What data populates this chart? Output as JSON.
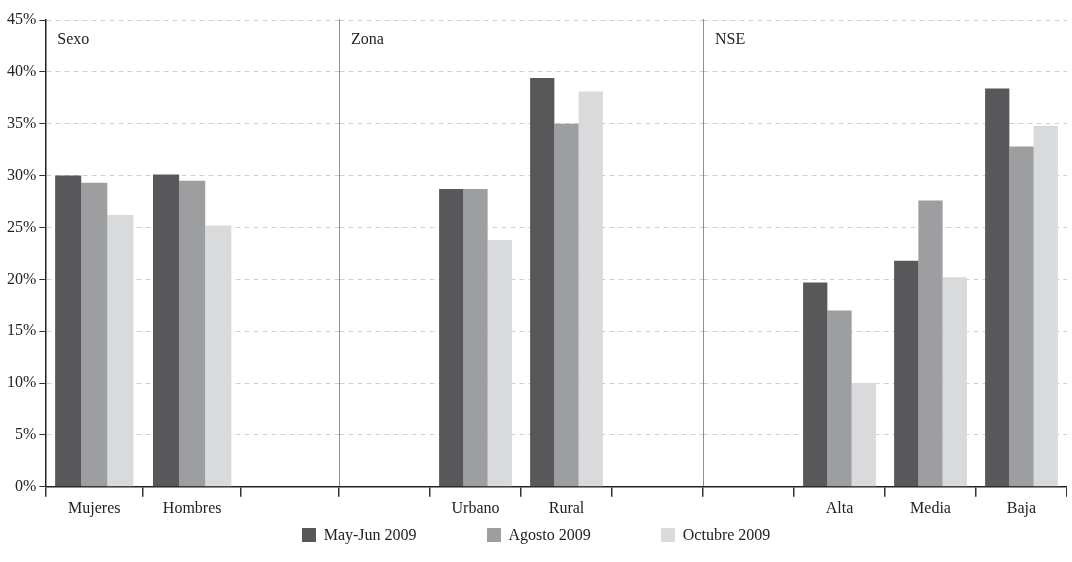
{
  "chart_data": [
    {
      "type": "bar",
      "categories": [
        "Mujeres",
        "Hombres",
        null
      ],
      "series": [
        {
          "name": "May-Jun 2009",
          "color": "#58585a",
          "values": [
            30.0,
            30.1,
            null
          ]
        },
        {
          "name": "Agosto 2009",
          "color": "#9d9ea0",
          "values": [
            29.3,
            29.5,
            null
          ]
        },
        {
          "name": "Octubre 2009",
          "color": "#d9dadc",
          "values": [
            26.2,
            25.2,
            null
          ]
        }
      ],
      "ylim": [
        0,
        45
      ],
      "yticks": [
        {
          "value": 0,
          "label": "0%"
        },
        {
          "value": 5,
          "label": "5%"
        },
        {
          "value": 10,
          "label": "10%"
        },
        {
          "value": 15,
          "label": "15%"
        },
        {
          "value": 20,
          "label": "20%"
        },
        {
          "value": 25,
          "label": "25%"
        },
        {
          "value": 30,
          "label": "30%"
        },
        {
          "value": 35,
          "label": "35%"
        },
        {
          "value": 40,
          "label": "40%"
        },
        {
          "value": 45,
          "label": "45%"
        }
      ],
      "grid": "y",
      "legend": "bottom",
      "annotations": [
        "Sexo"
      ]
    },
    {
      "type": "bar",
      "categories": [
        null,
        "Urbano",
        "Rural",
        null
      ],
      "series": [
        {
          "color": "#58585a",
          "values": [
            null,
            28.7,
            39.4,
            null
          ]
        },
        {
          "color": "#9d9ea0",
          "values": [
            null,
            28.7,
            35.0,
            null
          ]
        },
        {
          "color": "#d9dadc",
          "values": [
            null,
            23.8,
            38.1,
            null
          ]
        }
      ],
      "ylim": [
        0,
        45
      ],
      "yticks": [
        0,
        5,
        10,
        15,
        20,
        25,
        30,
        35,
        40,
        45
      ],
      "grid": "y",
      "tick_labels": "x",
      "annotations": [
        "Zona"
      ]
    },
    {
      "type": "bar",
      "categories": [
        null,
        "Alta",
        "Media",
        "Baja"
      ],
      "series": [
        {
          "color": "#58585a",
          "values": [
            null,
            19.7,
            21.8,
            38.4
          ]
        },
        {
          "color": "#9d9ea0",
          "values": [
            null,
            17.0,
            27.6,
            32.8
          ]
        },
        {
          "color": "#d9dadc",
          "values": [
            null,
            10.0,
            20.2,
            34.8
          ]
        }
      ],
      "ylim": [
        0,
        45
      ],
      "yticks": [
        0,
        5,
        10,
        15,
        20,
        25,
        30,
        35,
        40,
        45
      ],
      "grid": "y",
      "tick_labels": "x",
      "annotations": [
        "NSE"
      ]
    }
  ]
}
